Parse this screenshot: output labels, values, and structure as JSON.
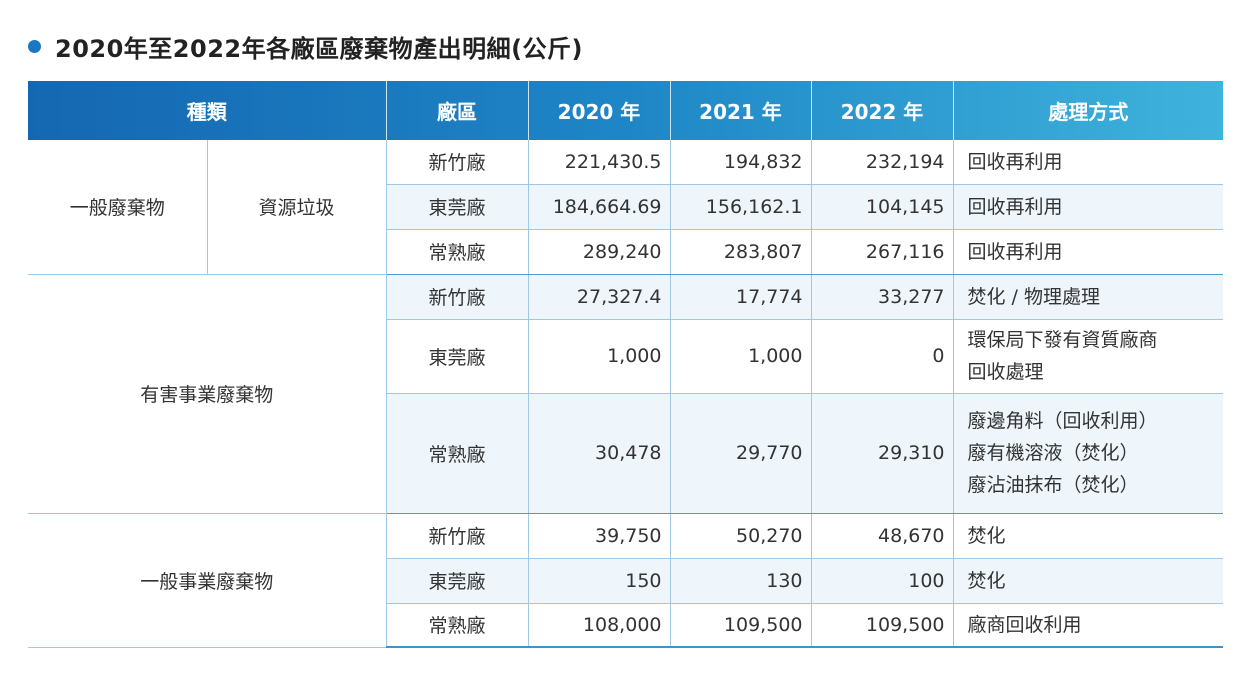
{
  "title": "2020年至2022年各廠區廢棄物產出明細(公斤)",
  "colors": {
    "accent": "#1a78c2",
    "header_start": "#1567b2",
    "header_end": "#3fb3dc",
    "row_shade": "#eef6fc"
  },
  "headers": {
    "type": "種類",
    "plant": "廠區",
    "y2020": "2020 年",
    "y2021": "2021 年",
    "y2022": "2022 年",
    "method": "處理方式"
  },
  "groups": [
    {
      "category": "一般廢棄物",
      "subcategory": "資源垃圾",
      "rows": [
        {
          "plant": "新竹廠",
          "y2020": "221,430.5",
          "y2021": "194,832",
          "y2022": "232,194",
          "method": [
            "回收再利用"
          ]
        },
        {
          "plant": "東莞廠",
          "y2020": "184,664.69",
          "y2021": "156,162.1",
          "y2022": "104,145",
          "method": [
            "回收再利用"
          ]
        },
        {
          "plant": "常熟廠",
          "y2020": "289,240",
          "y2021": "283,807",
          "y2022": "267,116",
          "method": [
            "回收再利用"
          ]
        }
      ]
    },
    {
      "category": "有害事業廢棄物",
      "rows": [
        {
          "plant": "新竹廠",
          "y2020": "27,327.4",
          "y2021": "17,774",
          "y2022": "33,277",
          "method": [
            "焚化 / 物理處理"
          ]
        },
        {
          "plant": "東莞廠",
          "y2020": "1,000",
          "y2021": "1,000",
          "y2022": "0",
          "method": [
            "環保局下發有資質廠商",
            "回收處理"
          ]
        },
        {
          "plant": "常熟廠",
          "y2020": "30,478",
          "y2021": "29,770",
          "y2022": "29,310",
          "method": [
            "廢邊角料（回收利用）",
            "廢有機溶液（焚化）",
            "廢沾油抹布（焚化）"
          ]
        }
      ]
    },
    {
      "category": "一般事業廢棄物",
      "rows": [
        {
          "plant": "新竹廠",
          "y2020": "39,750",
          "y2021": "50,270",
          "y2022": "48,670",
          "method": [
            "焚化"
          ]
        },
        {
          "plant": "東莞廠",
          "y2020": "150",
          "y2021": "130",
          "y2022": "100",
          "method": [
            "焚化"
          ]
        },
        {
          "plant": "常熟廠",
          "y2020": "108,000",
          "y2021": "109,500",
          "y2022": "109,500",
          "method": [
            "廠商回收利用"
          ]
        }
      ]
    }
  ]
}
